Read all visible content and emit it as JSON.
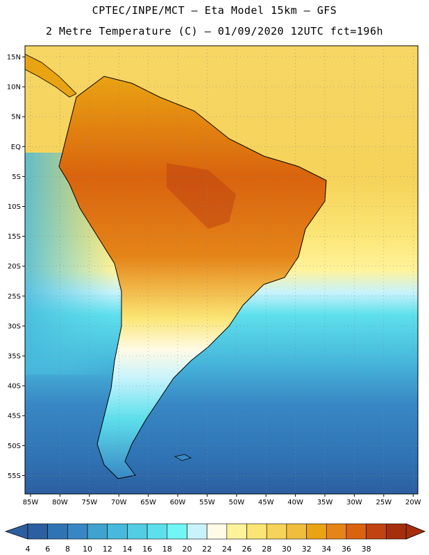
{
  "header": {
    "line1": "CPTEC/INPE/MCT –  Eta Model 15km – GFS",
    "line2": "2 Metre Temperature (C) – 01/09/2020 12UTC fct=196h"
  },
  "map": {
    "lat_labels": [
      "15N",
      "10N",
      "5N",
      "EQ",
      "5S",
      "10S",
      "15S",
      "20S",
      "25S",
      "30S",
      "35S",
      "40S",
      "45S",
      "50S",
      "55S"
    ],
    "lon_labels": [
      "85W",
      "80W",
      "75W",
      "70W",
      "65W",
      "60W",
      "55W",
      "50W",
      "45W",
      "40W",
      "35W",
      "30W",
      "25W",
      "20W"
    ]
  },
  "colorbar": {
    "labels": [
      "4",
      "6",
      "8",
      "10",
      "12",
      "14",
      "16",
      "18",
      "20",
      "22",
      "24",
      "26",
      "28",
      "30",
      "32",
      "34",
      "36",
      "38"
    ],
    "colors": [
      "#2c5fa0",
      "#2f73b4",
      "#3887c4",
      "#3fa2cf",
      "#47b9dc",
      "#52cde4",
      "#5ee0ec",
      "#72f5f5",
      "#c8f3fc",
      "#fffbe6",
      "#fff39a",
      "#fbe574",
      "#f6d35a",
      "#f0be3c",
      "#eaa312",
      "#e58518",
      "#d9630e",
      "#c04310",
      "#a52e0c"
    ],
    "under_color": "#2c5fa0",
    "over_color": "#a52e0c"
  }
}
